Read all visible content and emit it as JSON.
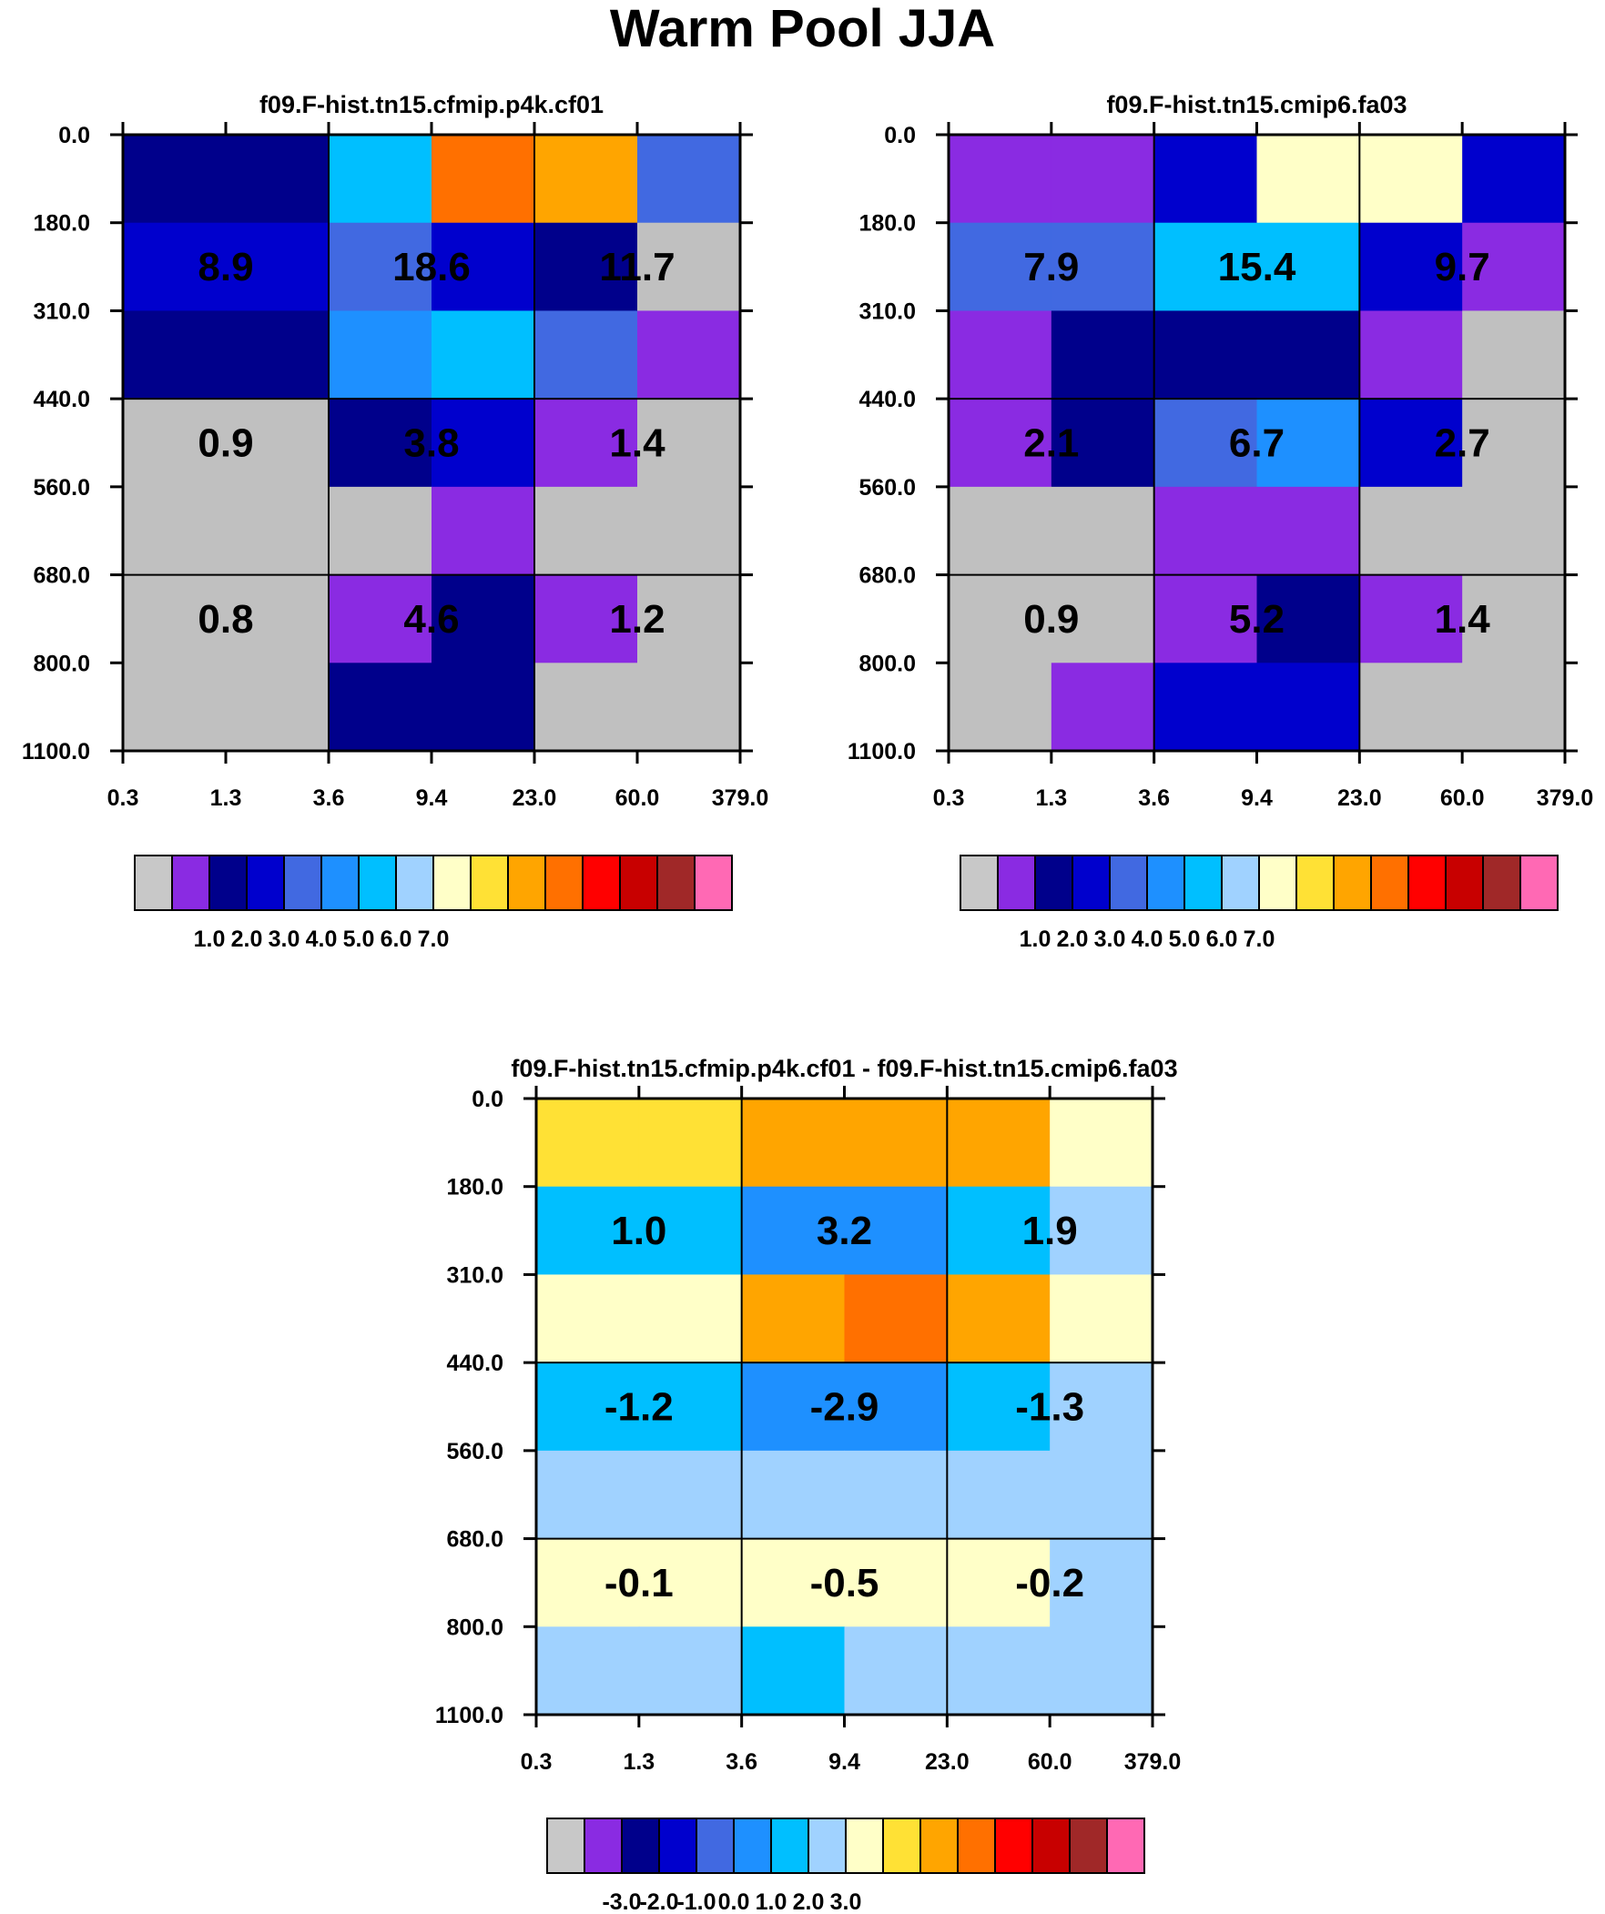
{
  "title": "Warm Pool JJA",
  "chart_data": [
    {
      "type": "heatmap",
      "title": "f09.F-hist.tn15.cfmip.p4k.cf01",
      "x_ticks": [
        "0.3",
        "1.3",
        "3.6",
        "9.4",
        "23.0",
        "60.0",
        "379.0"
      ],
      "y_ticks": [
        "0.0",
        "180.0",
        "310.0",
        "440.0",
        "560.0",
        "680.0",
        "800.0",
        "1100.0"
      ],
      "cells": [
        [
          "#00008B",
          "#00008B",
          "#00BFFF",
          "#FF7000",
          "#FFA500",
          "#4169E1"
        ],
        [
          "#0000CD",
          "#0000CD",
          "#4169E1",
          "#0000CD",
          "#00008B",
          "#C0C0C0"
        ],
        [
          "#00008B",
          "#00008B",
          "#1E90FF",
          "#00BFFF",
          "#4169E1",
          "#8A2BE2"
        ],
        [
          "#C0C0C0",
          "#C0C0C0",
          "#00008B",
          "#0000CD",
          "#8A2BE2",
          "#C0C0C0"
        ],
        [
          "#C0C0C0",
          "#C0C0C0",
          "#C0C0C0",
          "#8A2BE2",
          "#C0C0C0",
          "#C0C0C0"
        ],
        [
          "#C0C0C0",
          "#C0C0C0",
          "#8A2BE2",
          "#00008B",
          "#8A2BE2",
          "#C0C0C0"
        ],
        [
          "#C0C0C0",
          "#C0C0C0",
          "#00008B",
          "#00008B",
          "#C0C0C0",
          "#C0C0C0"
        ]
      ],
      "values": [
        [
          "8.9",
          "18.6",
          "11.7"
        ],
        [
          "0.9",
          "3.8",
          "1.4"
        ],
        [
          "0.8",
          "4.6",
          "1.2"
        ]
      ],
      "colorbar": {
        "colors": [
          "#C8C8C8",
          "#8A2BE2",
          "#00008B",
          "#0000CD",
          "#4169E1",
          "#1E90FF",
          "#00BFFF",
          "#A0D2FF",
          "#FFFFC8",
          "#FFE135",
          "#FFA500",
          "#FF7000",
          "#FF0000",
          "#C80000",
          "#A02828",
          "#FF69B4"
        ],
        "labels": [
          "1.0",
          "2.0",
          "3.0",
          "4.0",
          "5.0",
          "6.0",
          "7.0"
        ]
      }
    },
    {
      "type": "heatmap",
      "title": "f09.F-hist.tn15.cmip6.fa03",
      "x_ticks": [
        "0.3",
        "1.3",
        "3.6",
        "9.4",
        "23.0",
        "60.0",
        "379.0"
      ],
      "y_ticks": [
        "0.0",
        "180.0",
        "310.0",
        "440.0",
        "560.0",
        "680.0",
        "800.0",
        "1100.0"
      ],
      "cells": [
        [
          "#8A2BE2",
          "#8A2BE2",
          "#0000CD",
          "#FFFFC8",
          "#FFFFC8",
          "#0000CD"
        ],
        [
          "#4169E1",
          "#4169E1",
          "#00BFFF",
          "#00BFFF",
          "#0000CD",
          "#8A2BE2"
        ],
        [
          "#8A2BE2",
          "#00008B",
          "#00008B",
          "#00008B",
          "#8A2BE2",
          "#C0C0C0"
        ],
        [
          "#8A2BE2",
          "#00008B",
          "#4169E1",
          "#1E90FF",
          "#0000CD",
          "#C0C0C0"
        ],
        [
          "#C0C0C0",
          "#C0C0C0",
          "#8A2BE2",
          "#8A2BE2",
          "#C0C0C0",
          "#C0C0C0"
        ],
        [
          "#C0C0C0",
          "#C0C0C0",
          "#8A2BE2",
          "#00008B",
          "#8A2BE2",
          "#C0C0C0"
        ],
        [
          "#C0C0C0",
          "#8A2BE2",
          "#0000CD",
          "#0000CD",
          "#C0C0C0",
          "#C0C0C0"
        ]
      ],
      "values": [
        [
          "7.9",
          "15.4",
          "9.7"
        ],
        [
          "2.1",
          "6.7",
          "2.7"
        ],
        [
          "0.9",
          "5.2",
          "1.4"
        ]
      ],
      "colorbar": {
        "colors": [
          "#C8C8C8",
          "#8A2BE2",
          "#00008B",
          "#0000CD",
          "#4169E1",
          "#1E90FF",
          "#00BFFF",
          "#A0D2FF",
          "#FFFFC8",
          "#FFE135",
          "#FFA500",
          "#FF7000",
          "#FF0000",
          "#C80000",
          "#A02828",
          "#FF69B4"
        ],
        "labels": [
          "1.0",
          "2.0",
          "3.0",
          "4.0",
          "5.0",
          "6.0",
          "7.0"
        ]
      }
    },
    {
      "type": "heatmap",
      "title": "f09.F-hist.tn15.cfmip.p4k.cf01 - f09.F-hist.tn15.cmip6.fa03",
      "x_ticks": [
        "0.3",
        "1.3",
        "3.6",
        "9.4",
        "23.0",
        "60.0",
        "379.0"
      ],
      "y_ticks": [
        "0.0",
        "180.0",
        "310.0",
        "440.0",
        "560.0",
        "680.0",
        "800.0",
        "1100.0"
      ],
      "cells": [
        [
          "#FFE135",
          "#FFE135",
          "#FFA500",
          "#FFA500",
          "#FFA500",
          "#FFFFC8"
        ],
        [
          "#00BFFF",
          "#00BFFF",
          "#1E90FF",
          "#1E90FF",
          "#00BFFF",
          "#A0D2FF"
        ],
        [
          "#FFFFC8",
          "#FFFFC8",
          "#FFA500",
          "#FF7000",
          "#FFA500",
          "#FFFFC8"
        ],
        [
          "#00BFFF",
          "#00BFFF",
          "#1E90FF",
          "#1E90FF",
          "#00BFFF",
          "#A0D2FF"
        ],
        [
          "#A0D2FF",
          "#A0D2FF",
          "#A0D2FF",
          "#A0D2FF",
          "#A0D2FF",
          "#A0D2FF"
        ],
        [
          "#FFFFC8",
          "#FFFFC8",
          "#FFFFC8",
          "#FFFFC8",
          "#FFFFC8",
          "#A0D2FF"
        ],
        [
          "#A0D2FF",
          "#A0D2FF",
          "#00BFFF",
          "#A0D2FF",
          "#A0D2FF",
          "#A0D2FF"
        ]
      ],
      "values": [
        [
          "1.0",
          "3.2",
          "1.9"
        ],
        [
          "-1.2",
          "-2.9",
          "-1.3"
        ],
        [
          "-0.1",
          "-0.5",
          "-0.2"
        ]
      ],
      "colorbar": {
        "colors": [
          "#C8C8C8",
          "#8A2BE2",
          "#00008B",
          "#0000CD",
          "#4169E1",
          "#1E90FF",
          "#00BFFF",
          "#A0D2FF",
          "#FFFFC8",
          "#FFE135",
          "#FFA500",
          "#FF7000",
          "#FF0000",
          "#C80000",
          "#A02828",
          "#FF69B4"
        ],
        "labels": [
          "-3.0",
          "-2.0",
          "-1.0",
          "0.0",
          "1.0",
          "2.0",
          "3.0"
        ]
      }
    }
  ]
}
